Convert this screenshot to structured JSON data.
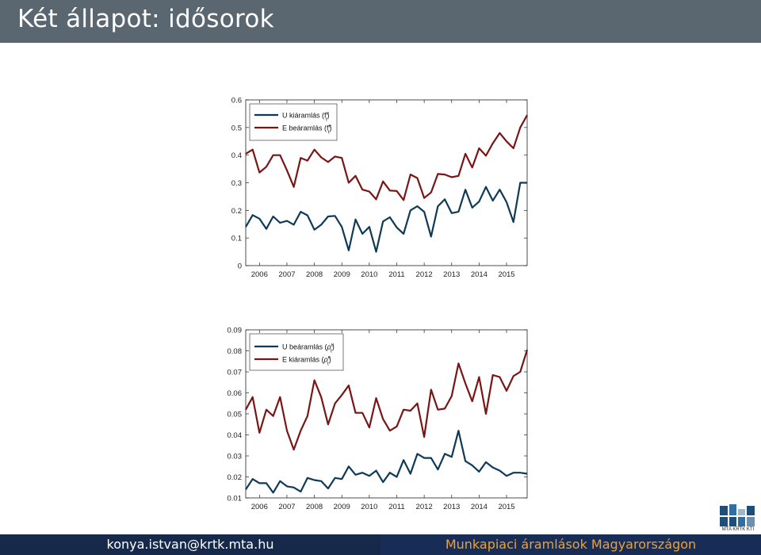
{
  "slide": {
    "title": "Két állapot: idősorok",
    "footer_left": "konya.istvan@krtk.mta.hu",
    "footer_right": "Munkapiaci áramlások Magyarországon",
    "logo_text": "MTA KRTK KTI",
    "colors": {
      "title_bar": "#5a6670",
      "footer_left": "#16294a",
      "footer_right": "#182d55",
      "footer_right_text": "#f0a030"
    }
  },
  "chart_data": [
    {
      "type": "line",
      "title": "",
      "xlabel": "",
      "ylabel": "",
      "xlim": [
        2005.5,
        2015.75
      ],
      "ylim": [
        0,
        0.6
      ],
      "yticks": [
        "0",
        "0.1",
        "0.2",
        "0.3",
        "0.4",
        "0.5",
        "0.6"
      ],
      "xticks": [
        "2006",
        "2007",
        "2008",
        "2009",
        "2010",
        "2011",
        "2012",
        "2013",
        "2014",
        "2015"
      ],
      "legend_position": "top-left",
      "grid": false,
      "series": [
        {
          "name": "U kiáramlás (f_t^u)",
          "legend_main": "U kiáramlás (f",
          "legend_sup": "u",
          "legend_sub": "t",
          "color": "#0e3a57",
          "x": [
            2005.5,
            2005.75,
            2006,
            2006.25,
            2006.5,
            2006.75,
            2007,
            2007.25,
            2007.5,
            2007.75,
            2008,
            2008.25,
            2008.5,
            2008.75,
            2009,
            2009.25,
            2009.5,
            2009.75,
            2010,
            2010.25,
            2010.5,
            2010.75,
            2011,
            2011.25,
            2011.5,
            2011.75,
            2012,
            2012.25,
            2012.5,
            2012.75,
            2013,
            2013.25,
            2013.5,
            2013.75,
            2014,
            2014.25,
            2014.5,
            2014.75,
            2015,
            2015.25,
            2015.5,
            2015.75
          ],
          "values": [
            0.14,
            0.183,
            0.17,
            0.133,
            0.178,
            0.155,
            0.162,
            0.148,
            0.195,
            0.182,
            0.13,
            0.148,
            0.178,
            0.18,
            0.14,
            0.055,
            0.167,
            0.115,
            0.14,
            0.05,
            0.16,
            0.175,
            0.138,
            0.115,
            0.2,
            0.215,
            0.195,
            0.105,
            0.215,
            0.24,
            0.19,
            0.195,
            0.275,
            0.21,
            0.232,
            0.285,
            0.235,
            0.275,
            0.23,
            0.158,
            0.3,
            0.3
          ]
        },
        {
          "name": "E beáramlás (f_t^e)",
          "legend_main": "E beáramlás (f",
          "legend_sup": "e",
          "legend_sub": "t",
          "color": "#7a1515",
          "x": [
            2005.5,
            2005.75,
            2006,
            2006.25,
            2006.5,
            2006.75,
            2007,
            2007.25,
            2007.5,
            2007.75,
            2008,
            2008.25,
            2008.5,
            2008.75,
            2009,
            2009.25,
            2009.5,
            2009.75,
            2010,
            2010.25,
            2010.5,
            2010.75,
            2011,
            2011.25,
            2011.5,
            2011.75,
            2012,
            2012.25,
            2012.5,
            2012.75,
            2013,
            2013.25,
            2013.5,
            2013.75,
            2014,
            2014.25,
            2014.5,
            2014.75,
            2015,
            2015.25,
            2015.5,
            2015.75
          ],
          "values": [
            0.405,
            0.42,
            0.337,
            0.358,
            0.4,
            0.4,
            0.345,
            0.285,
            0.39,
            0.38,
            0.42,
            0.392,
            0.375,
            0.395,
            0.39,
            0.3,
            0.325,
            0.275,
            0.268,
            0.24,
            0.305,
            0.272,
            0.27,
            0.237,
            0.33,
            0.317,
            0.245,
            0.265,
            0.332,
            0.33,
            0.32,
            0.325,
            0.405,
            0.355,
            0.425,
            0.398,
            0.443,
            0.48,
            0.45,
            0.425,
            0.5,
            0.545
          ]
        }
      ]
    },
    {
      "type": "line",
      "title": "",
      "xlabel": "",
      "ylabel": "",
      "xlim": [
        2005.5,
        2015.75
      ],
      "ylim": [
        0.01,
        0.09
      ],
      "yticks": [
        "0.01",
        "0.02",
        "0.03",
        "0.04",
        "0.05",
        "0.06",
        "0.07",
        "0.08",
        "0.09"
      ],
      "xticks": [
        "2006",
        "2007",
        "2008",
        "2009",
        "2010",
        "2011",
        "2012",
        "2013",
        "2014",
        "2015"
      ],
      "legend_position": "top-left",
      "grid": false,
      "series": [
        {
          "name": "U beáramlás (ρ_t^u)",
          "legend_main": "U beáramlás (",
          "legend_sym": "ρ",
          "legend_sup": "u",
          "legend_sub": "t",
          "color": "#0e3a57",
          "x": [
            2005.5,
            2005.75,
            2006,
            2006.25,
            2006.5,
            2006.75,
            2007,
            2007.25,
            2007.5,
            2007.75,
            2008,
            2008.25,
            2008.5,
            2008.75,
            2009,
            2009.25,
            2009.5,
            2009.75,
            2010,
            2010.25,
            2010.5,
            2010.75,
            2011,
            2011.25,
            2011.5,
            2011.75,
            2012,
            2012.25,
            2012.5,
            2012.75,
            2013,
            2013.25,
            2013.5,
            2013.75,
            2014,
            2014.25,
            2014.5,
            2014.75,
            2015,
            2015.25,
            2015.5,
            2015.75
          ],
          "values": [
            0.014,
            0.019,
            0.017,
            0.017,
            0.0125,
            0.018,
            0.0155,
            0.015,
            0.013,
            0.0195,
            0.0185,
            0.018,
            0.0145,
            0.0195,
            0.019,
            0.025,
            0.021,
            0.022,
            0.0205,
            0.023,
            0.0175,
            0.022,
            0.02,
            0.028,
            0.0215,
            0.031,
            0.029,
            0.029,
            0.0235,
            0.031,
            0.0295,
            0.042,
            0.0275,
            0.0255,
            0.0225,
            0.027,
            0.0245,
            0.023,
            0.0205,
            0.022,
            0.022,
            0.0215
          ]
        },
        {
          "name": "E kiáramlás (ρ_t^e)",
          "legend_main": "E kiáramlás (",
          "legend_sym": "ρ",
          "legend_sup": "e",
          "legend_sub": "t",
          "color": "#7a1515",
          "x": [
            2005.5,
            2005.75,
            2006,
            2006.25,
            2006.5,
            2006.75,
            2007,
            2007.25,
            2007.5,
            2007.75,
            2008,
            2008.25,
            2008.5,
            2008.75,
            2009,
            2009.25,
            2009.5,
            2009.75,
            2010,
            2010.25,
            2010.5,
            2010.75,
            2011,
            2011.25,
            2011.5,
            2011.75,
            2012,
            2012.25,
            2012.5,
            2012.75,
            2013,
            2013.25,
            2013.5,
            2013.75,
            2014,
            2014.25,
            2014.5,
            2014.75,
            2015,
            2015.25,
            2015.5,
            2015.75
          ],
          "values": [
            0.052,
            0.058,
            0.041,
            0.052,
            0.049,
            0.058,
            0.042,
            0.033,
            0.042,
            0.049,
            0.066,
            0.058,
            0.045,
            0.055,
            0.059,
            0.0635,
            0.0505,
            0.0505,
            0.0435,
            0.0575,
            0.0475,
            0.042,
            0.044,
            0.052,
            0.0515,
            0.055,
            0.039,
            0.0615,
            0.052,
            0.0525,
            0.0585,
            0.074,
            0.0645,
            0.056,
            0.0675,
            0.05,
            0.0685,
            0.0675,
            0.061,
            0.068,
            0.07,
            0.0805
          ]
        }
      ]
    }
  ]
}
